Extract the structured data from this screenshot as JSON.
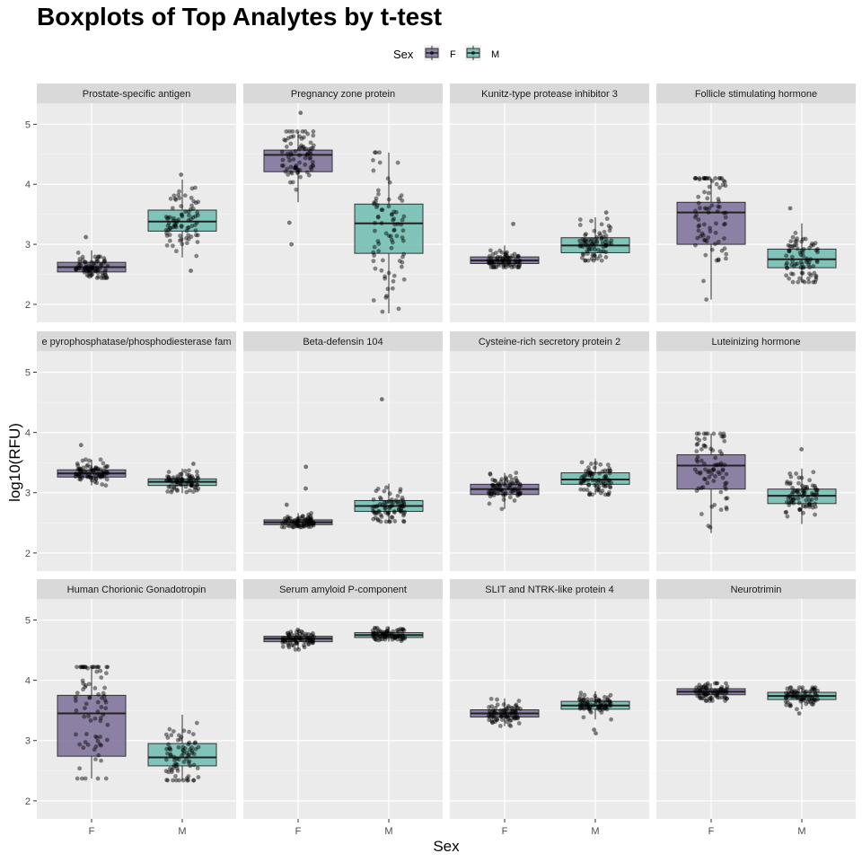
{
  "chart_data": {
    "type": "boxplot",
    "title": "Boxplots of Top Analytes by t-test",
    "xlabel": "Sex",
    "ylabel": "log10(RFU)",
    "categories": [
      "F",
      "M"
    ],
    "ylim": [
      1.7,
      5.35
    ],
    "y_ticks": [
      2,
      3,
      4,
      5
    ],
    "grid": true,
    "legend": {
      "title": "Sex",
      "position": "top",
      "entries": [
        {
          "label": "F",
          "color": "#7b6f99"
        },
        {
          "label": "M",
          "color": "#6cbcb0"
        }
      ]
    },
    "facets": [
      {
        "name": "Prostate-specific antigen",
        "boxes": [
          {
            "group": "F",
            "q1": 2.54,
            "median": 2.62,
            "q3": 2.7,
            "whisker_low": 2.44,
            "whisker_high": 2.9,
            "outliers": [
              3.12
            ]
          },
          {
            "group": "M",
            "q1": 3.22,
            "median": 3.38,
            "q3": 3.57,
            "whisker_low": 2.78,
            "whisker_high": 4.08,
            "outliers": [
              2.56,
              4.16
            ]
          }
        ]
      },
      {
        "name": "Pregnancy zone protein",
        "boxes": [
          {
            "group": "F",
            "q1": 4.21,
            "median": 4.49,
            "q3": 4.57,
            "whisker_low": 3.7,
            "whisker_high": 4.88,
            "outliers": [
              3.36,
              3.0,
              5.19
            ]
          },
          {
            "group": "M",
            "q1": 2.85,
            "median": 3.35,
            "q3": 3.67,
            "whisker_low": 1.85,
            "whisker_high": 4.53,
            "outliers": []
          }
        ]
      },
      {
        "name": "Kunitz-type protease inhibitor 3",
        "boxes": [
          {
            "group": "F",
            "q1": 2.68,
            "median": 2.73,
            "q3": 2.79,
            "whisker_low": 2.62,
            "whisker_high": 2.98,
            "outliers": [
              3.34
            ]
          },
          {
            "group": "M",
            "q1": 2.86,
            "median": 2.98,
            "q3": 3.11,
            "whisker_low": 2.73,
            "whisker_high": 3.45,
            "outliers": [
              3.53
            ]
          }
        ]
      },
      {
        "name": "Follicle stimulating hormone",
        "boxes": [
          {
            "group": "F",
            "q1": 3.0,
            "median": 3.53,
            "q3": 3.7,
            "whisker_low": 2.08,
            "whisker_high": 4.1,
            "outliers": []
          },
          {
            "group": "M",
            "q1": 2.61,
            "median": 2.75,
            "q3": 2.92,
            "whisker_low": 2.37,
            "whisker_high": 3.35,
            "outliers": [
              3.6
            ]
          }
        ]
      },
      {
        "name": "e pyrophosphatase/phosphodiesterase fam",
        "boxes": [
          {
            "group": "F",
            "q1": 3.26,
            "median": 3.32,
            "q3": 3.38,
            "whisker_low": 3.12,
            "whisker_high": 3.55,
            "outliers": [
              3.79
            ]
          },
          {
            "group": "M",
            "q1": 3.12,
            "median": 3.18,
            "q3": 3.23,
            "whisker_low": 2.99,
            "whisker_high": 3.4,
            "outliers": [
              3.48
            ]
          }
        ]
      },
      {
        "name": "Beta-defensin 104",
        "boxes": [
          {
            "group": "F",
            "q1": 2.47,
            "median": 2.51,
            "q3": 2.55,
            "whisker_low": 2.43,
            "whisker_high": 2.66,
            "outliers": [
              2.8,
              3.07,
              3.43
            ]
          },
          {
            "group": "M",
            "q1": 2.69,
            "median": 2.78,
            "q3": 2.87,
            "whisker_low": 2.52,
            "whisker_high": 3.15,
            "outliers": [
              4.55
            ]
          }
        ]
      },
      {
        "name": "Cysteine-rich secretory protein 2",
        "boxes": [
          {
            "group": "F",
            "q1": 2.97,
            "median": 3.06,
            "q3": 3.14,
            "whisker_low": 2.73,
            "whisker_high": 3.33,
            "outliers": []
          },
          {
            "group": "M",
            "q1": 3.14,
            "median": 3.22,
            "q3": 3.33,
            "whisker_low": 2.97,
            "whisker_high": 3.57,
            "outliers": []
          }
        ]
      },
      {
        "name": "Luteinizing hormone",
        "boxes": [
          {
            "group": "F",
            "q1": 3.06,
            "median": 3.45,
            "q3": 3.63,
            "whisker_low": 2.33,
            "whisker_high": 3.98,
            "outliers": []
          },
          {
            "group": "M",
            "q1": 2.82,
            "median": 2.95,
            "q3": 3.06,
            "whisker_low": 2.48,
            "whisker_high": 3.4,
            "outliers": [
              3.72
            ]
          }
        ]
      },
      {
        "name": "Human Chorionic Gonadotropin",
        "boxes": [
          {
            "group": "F",
            "q1": 2.74,
            "median": 3.45,
            "q3": 3.75,
            "whisker_low": 2.37,
            "whisker_high": 4.22,
            "outliers": []
          },
          {
            "group": "M",
            "q1": 2.58,
            "median": 2.72,
            "q3": 2.95,
            "whisker_low": 2.34,
            "whisker_high": 3.43,
            "outliers": []
          }
        ]
      },
      {
        "name": "Serum amyloid P-component",
        "boxes": [
          {
            "group": "F",
            "q1": 4.64,
            "median": 4.69,
            "q3": 4.73,
            "whisker_low": 4.51,
            "whisker_high": 4.84,
            "outliers": []
          },
          {
            "group": "M",
            "q1": 4.71,
            "median": 4.75,
            "q3": 4.79,
            "whisker_low": 4.64,
            "whisker_high": 4.89,
            "outliers": []
          }
        ]
      },
      {
        "name": "SLIT and NTRK-like protein 4",
        "boxes": [
          {
            "group": "F",
            "q1": 3.39,
            "median": 3.45,
            "q3": 3.51,
            "whisker_low": 3.24,
            "whisker_high": 3.7,
            "outliers": []
          },
          {
            "group": "M",
            "q1": 3.52,
            "median": 3.58,
            "q3": 3.65,
            "whisker_low": 3.35,
            "whisker_high": 3.82,
            "outliers": [
              3.12,
              3.18
            ]
          }
        ]
      },
      {
        "name": "Neurotrimin",
        "boxes": [
          {
            "group": "F",
            "q1": 3.76,
            "median": 3.81,
            "q3": 3.86,
            "whisker_low": 3.66,
            "whisker_high": 3.95,
            "outliers": []
          },
          {
            "group": "M",
            "q1": 3.68,
            "median": 3.74,
            "q3": 3.8,
            "whisker_low": 3.52,
            "whisker_high": 3.88,
            "outliers": [
              3.45
            ]
          }
        ]
      }
    ]
  }
}
